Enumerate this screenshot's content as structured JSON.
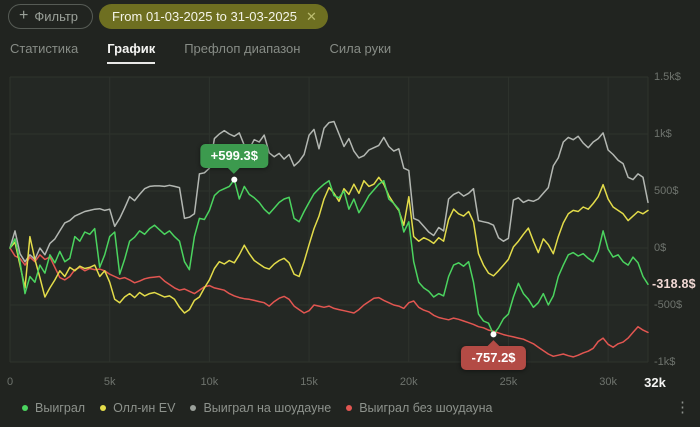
{
  "topbar": {
    "filter_button": "Фильтр",
    "filter_chip": "From 01-03-2025 to 31-03-2025"
  },
  "tabs": {
    "items": [
      {
        "label": "Статистика",
        "active": false
      },
      {
        "label": "График",
        "active": true
      },
      {
        "label": "Префлоп диапазон",
        "active": false
      },
      {
        "label": "Сила руки",
        "active": false
      }
    ]
  },
  "chart_data": {
    "type": "line",
    "xlabel": "hands",
    "ylabel": "$",
    "x_step": 250,
    "x_max": 32000,
    "ylim": [
      -1000,
      1500
    ],
    "grid": true,
    "legend_position": "bottom",
    "x_ticks": [
      {
        "label": "0",
        "value": 0
      },
      {
        "label": "5k",
        "value": 5000
      },
      {
        "label": "10k",
        "value": 10000
      },
      {
        "label": "15k",
        "value": 15000
      },
      {
        "label": "20k",
        "value": 20000
      },
      {
        "label": "25k",
        "value": 25000
      },
      {
        "label": "30k",
        "value": 30000
      }
    ],
    "x_end_label": "32k",
    "y_ticks": [
      {
        "label": "1.5k$",
        "value": 1500
      },
      {
        "label": "1k$",
        "value": 1000
      },
      {
        "label": "500$",
        "value": 500
      },
      {
        "label": "0$",
        "value": 0
      },
      {
        "label": "-500$",
        "value": -500
      },
      {
        "label": "-1k$",
        "value": -1000
      }
    ],
    "series": [
      {
        "name": "Выиграл",
        "color": "#4bd45f",
        "values": [
          0,
          80,
          -120,
          -400,
          -250,
          -300,
          -150,
          -220,
          -60,
          -130,
          -30,
          -120,
          -90,
          100,
          60,
          140,
          120,
          170,
          -170,
          -60,
          100,
          140,
          -230,
          -100,
          60,
          95,
          150,
          120,
          170,
          200,
          160,
          120,
          150,
          100,
          60,
          -120,
          -190,
          100,
          260,
          250,
          330,
          460,
          500,
          520,
          540,
          599.3,
          430,
          540,
          470,
          440,
          400,
          340,
          300,
          350,
          400,
          430,
          445,
          260,
          230,
          320,
          400,
          475,
          520,
          560,
          590,
          460,
          440,
          500,
          340,
          430,
          310,
          380,
          460,
          510,
          560,
          590,
          430,
          390,
          340,
          140,
          230,
          -120,
          -300,
          -350,
          -380,
          -430,
          -400,
          -420,
          -250,
          -150,
          -130,
          -160,
          -120,
          -300,
          -580,
          -640,
          -660,
          -757.2,
          -700,
          -620,
          -580,
          -430,
          -310,
          -400,
          -450,
          -520,
          -480,
          -400,
          -500,
          -420,
          -250,
          -150,
          -60,
          -40,
          -70,
          -50,
          -90,
          -120,
          -30,
          150,
          -10,
          -80,
          -60,
          -120,
          -150,
          -80,
          -130,
          -250,
          -318.8
        ]
      },
      {
        "name": "Олл-ин EV",
        "color": "#e3dc4a",
        "values": [
          0,
          50,
          -150,
          -350,
          100,
          -100,
          -260,
          -430,
          -350,
          -280,
          -200,
          -250,
          -170,
          -200,
          -160,
          -180,
          -170,
          -150,
          -250,
          -200,
          -300,
          -450,
          -480,
          -430,
          -400,
          -435,
          -390,
          -420,
          -400,
          -390,
          -410,
          -430,
          -420,
          -450,
          -520,
          -570,
          -540,
          -460,
          -430,
          -350,
          -280,
          -180,
          -120,
          -140,
          -110,
          -130,
          -60,
          25,
          -50,
          -110,
          -140,
          -170,
          -185,
          -140,
          -110,
          -90,
          -130,
          -230,
          -250,
          -120,
          30,
          170,
          280,
          430,
          530,
          480,
          410,
          520,
          470,
          560,
          480,
          590,
          540,
          560,
          620,
          560,
          460,
          390,
          330,
          200,
          450,
          100,
          60,
          90,
          70,
          40,
          90,
          60,
          250,
          340,
          300,
          280,
          320,
          230,
          -50,
          -150,
          -220,
          -245,
          -200,
          -150,
          -100,
          10,
          60,
          120,
          175,
          60,
          -40,
          80,
          30,
          -50,
          100,
          220,
          300,
          330,
          320,
          360,
          340,
          390,
          450,
          555,
          430,
          360,
          330,
          300,
          240,
          280,
          320,
          300,
          330
        ]
      },
      {
        "name": "Выиграл на шоудауне",
        "color": "#b3b7b2",
        "values": [
          0,
          150,
          -50,
          -120,
          -60,
          -100,
          0,
          -60,
          40,
          80,
          150,
          220,
          240,
          280,
          300,
          320,
          330,
          340,
          345,
          330,
          340,
          190,
          260,
          350,
          450,
          415,
          470,
          520,
          540,
          545,
          545,
          540,
          550,
          540,
          530,
          260,
          270,
          300,
          650,
          660,
          700,
          960,
          1000,
          1030,
          1000,
          980,
          1010,
          900,
          870,
          950,
          930,
          990,
          835,
          800,
          830,
          780,
          820,
          720,
          760,
          820,
          990,
          1040,
          870,
          1050,
          1100,
          1110,
          1000,
          890,
          960,
          850,
          790,
          810,
          860,
          880,
          900,
          970,
          890,
          850,
          870,
          700,
          680,
          260,
          240,
          190,
          140,
          110,
          180,
          150,
          430,
          470,
          490,
          455,
          480,
          520,
          240,
          230,
          220,
          200,
          90,
          60,
          85,
          420,
          440,
          400,
          420,
          410,
          430,
          480,
          530,
          720,
          790,
          930,
          970,
          950,
          980,
          920,
          880,
          930,
          960,
          1010,
          860,
          820,
          770,
          740,
          620,
          600,
          650,
          620,
          400
        ]
      },
      {
        "name": "Выиграл без шоудауна",
        "color": "#e25651",
        "values": [
          0,
          -70,
          -90,
          -150,
          -80,
          -120,
          -60,
          -100,
          -80,
          -170,
          -260,
          -280,
          -250,
          -190,
          -170,
          -200,
          -180,
          -190,
          -185,
          -200,
          -230,
          -250,
          -270,
          -260,
          -280,
          -305,
          -290,
          -270,
          -260,
          -255,
          -250,
          -290,
          -320,
          -350,
          -370,
          -360,
          -380,
          -400,
          -370,
          -340,
          -330,
          -350,
          -360,
          -370,
          -400,
          -420,
          -435,
          -445,
          -450,
          -460,
          -470,
          -480,
          -510,
          -470,
          -440,
          -425,
          -450,
          -510,
          -540,
          -570,
          -550,
          -500,
          -510,
          -520,
          -510,
          -530,
          -540,
          -550,
          -560,
          -570,
          -540,
          -500,
          -470,
          -440,
          -435,
          -460,
          -480,
          -500,
          -510,
          -530,
          -480,
          -465,
          -520,
          -545,
          -560,
          -590,
          -610,
          -620,
          -630,
          -615,
          -625,
          -640,
          -655,
          -670,
          -690,
          -700,
          -720,
          -730,
          -745,
          -760,
          -770,
          -780,
          -790,
          -800,
          -820,
          -840,
          -870,
          -900,
          -930,
          -950,
          -940,
          -930,
          -945,
          -955,
          -940,
          -920,
          -905,
          -880,
          -820,
          -790,
          -845,
          -870,
          -840,
          -825,
          -790,
          -740,
          -690,
          -720,
          -740
        ]
      }
    ],
    "markers": [
      {
        "label": "+599.3$",
        "hands": 11250,
        "value": 599.3,
        "color": "#3c9a4e",
        "position": "above"
      },
      {
        "label": "-757.2$",
        "hands": 24250,
        "value": -757.2,
        "color": "#b34b45",
        "position": "below"
      }
    ],
    "current_value": {
      "label": "-318.8$",
      "value": -318.8,
      "color": "#f2d9d5"
    }
  },
  "legend": {
    "items": [
      {
        "label": "Выиграл",
        "color": "#4bd45f"
      },
      {
        "label": "Олл-ин EV",
        "color": "#e3dc4a"
      },
      {
        "label": "Выиграл на шоудауне",
        "color": "#9aa09a"
      },
      {
        "label": "Выиграл без шоудауна",
        "color": "#e25651"
      }
    ]
  },
  "colors": {
    "background": "#212420",
    "plot_background": "#242824",
    "grid": "#2e332d",
    "axis_text": "#6e736d"
  }
}
